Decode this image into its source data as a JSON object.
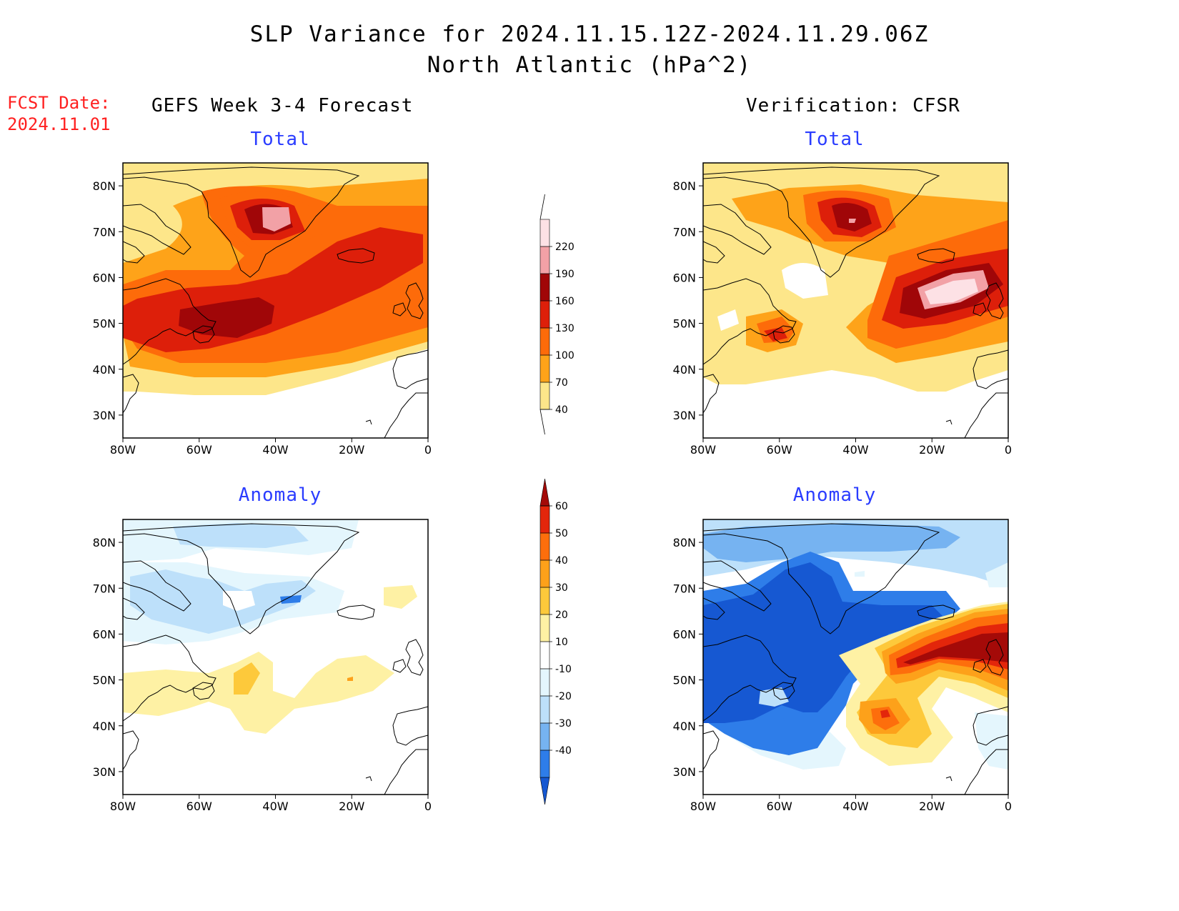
{
  "title": {
    "line1": "SLP Variance for 2024.11.15.12Z-2024.11.29.06Z",
    "line2": "North Atlantic (hPa^2)"
  },
  "fcst_date": {
    "label": "FCST Date:",
    "value": "2024.11.01"
  },
  "columns": {
    "left": "GEFS Week 3-4 Forecast",
    "right": "Verification: CFSR"
  },
  "panels": {
    "total": "Total",
    "anomaly": "Anomaly"
  },
  "axes": {
    "lat_labels": [
      "80N",
      "70N",
      "60N",
      "50N",
      "40N",
      "30N"
    ],
    "lon_labels": [
      "80W",
      "60W",
      "40W",
      "20W",
      "0"
    ]
  },
  "colorbars": {
    "total": {
      "labels": [
        "40",
        "70",
        "100",
        "130",
        "160",
        "190",
        "220"
      ],
      "colors": [
        "#fde68a",
        "#fea319",
        "#fd6b0a",
        "#dd1f0a",
        "#a00608",
        "#f2a1a6",
        "#fde1e5"
      ]
    },
    "anomaly": {
      "labels": [
        "-40",
        "-30",
        "-20",
        "-10",
        "10",
        "20",
        "30",
        "40",
        "50",
        "60"
      ],
      "colors": [
        "#1658d2",
        "#2e7de9",
        "#76b3f1",
        "#bde0fa",
        "#e4f6fd",
        "#ffffff",
        "#fef1a4",
        "#fdc93b",
        "#fda11a",
        "#fd6e0c",
        "#e3260b",
        "#a40a08"
      ]
    }
  }
}
